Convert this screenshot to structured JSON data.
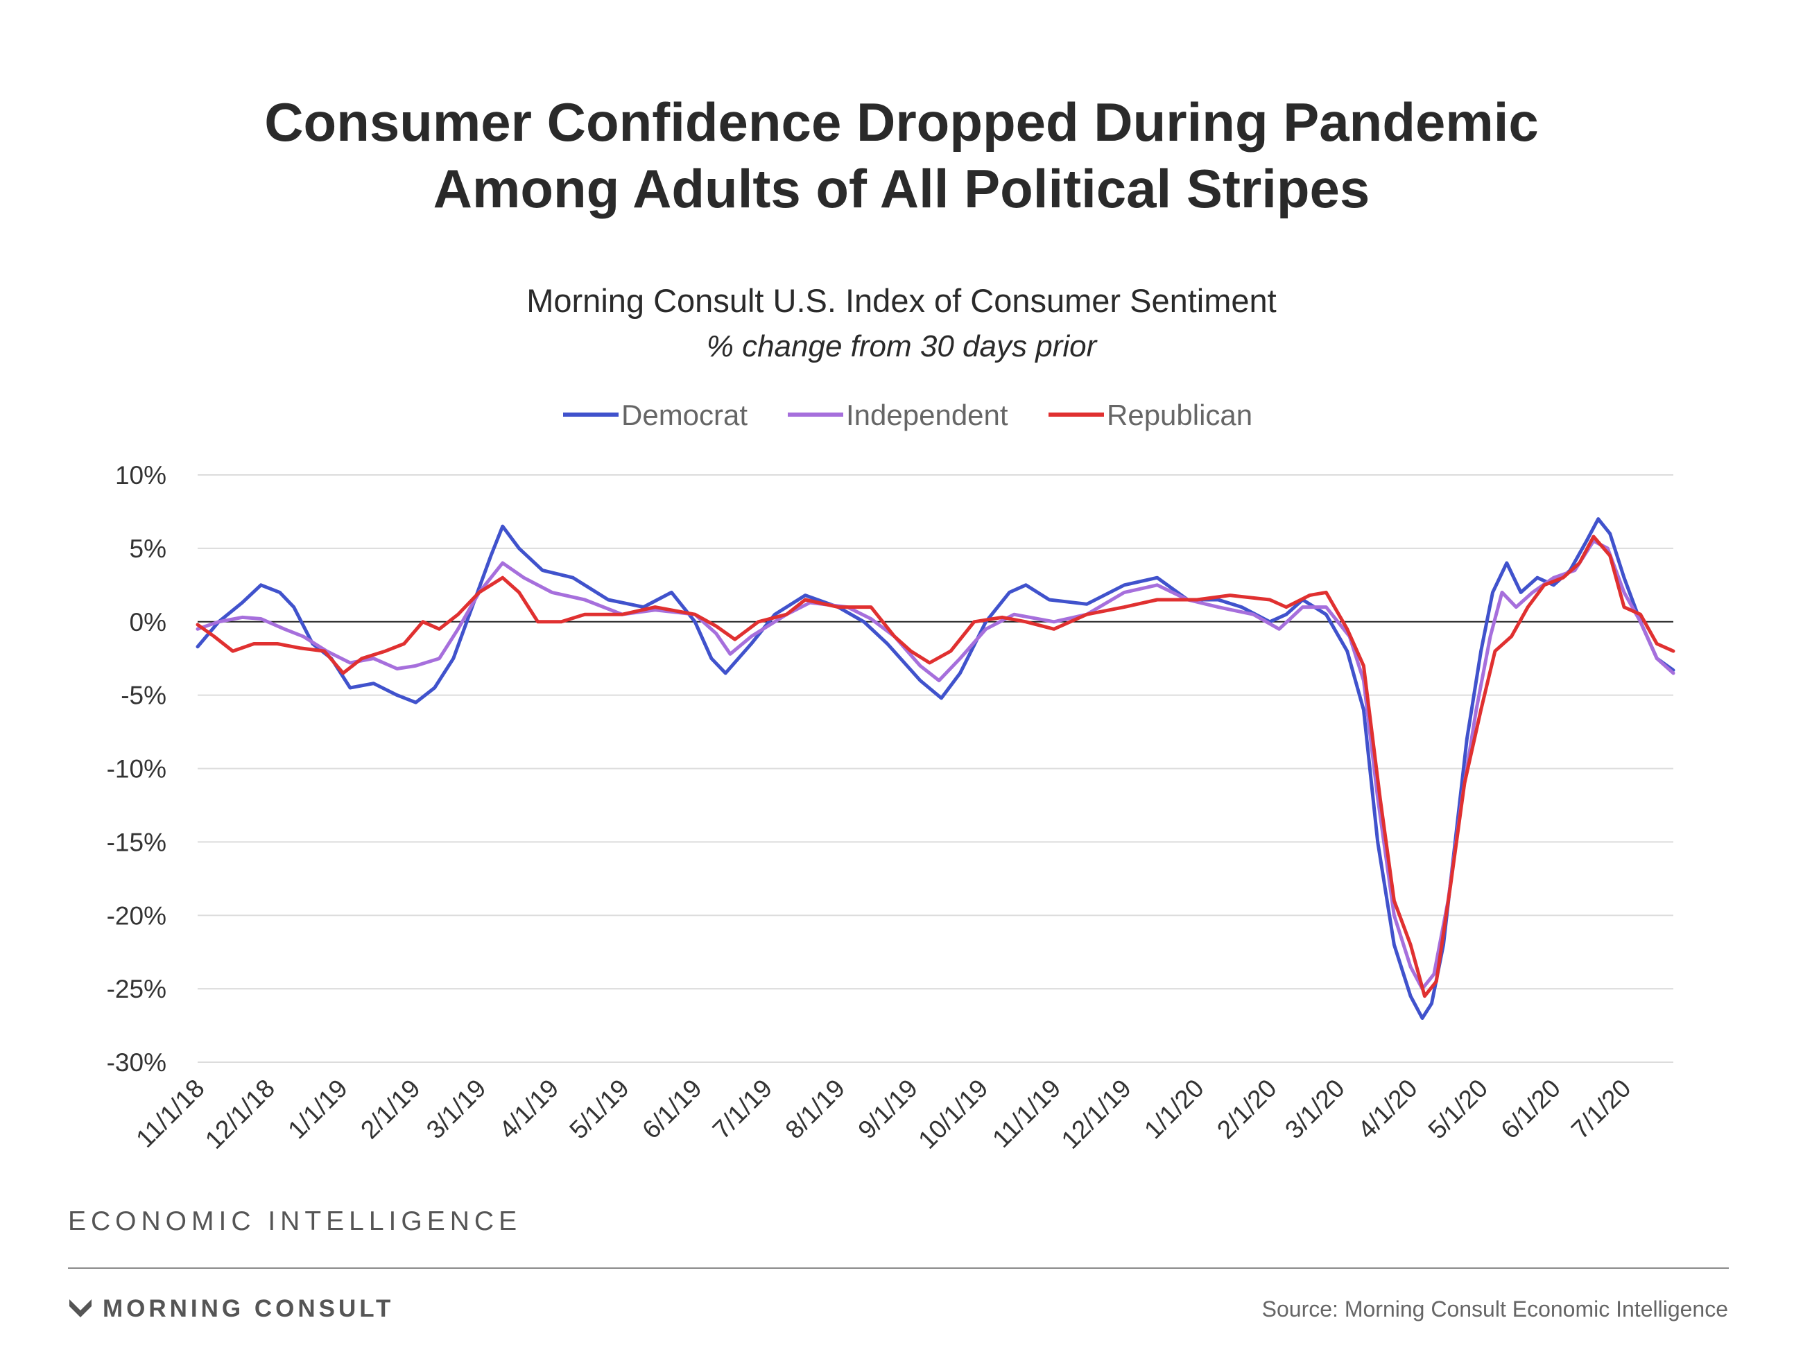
{
  "title_line1": "Consumer Confidence Dropped During Pandemic",
  "title_line2": "Among Adults of All Political Stripes",
  "subtitle": "Morning Consult U.S. Index of Consumer Sentiment",
  "subtitle2": "% change from 30 days prior",
  "brand": "ECONOMIC INTELLIGENCE",
  "logo_text": "MORNING CONSULT",
  "source": "Source: Morning Consult Economic Intelligence",
  "chart_data": {
    "type": "line",
    "x_type": "date",
    "xlim": [
      "2018-11-01",
      "2020-07-22"
    ],
    "x_ticks": [
      "2018-11-01",
      "2018-12-01",
      "2019-01-01",
      "2019-02-01",
      "2019-03-01",
      "2019-04-01",
      "2019-05-01",
      "2019-06-01",
      "2019-07-01",
      "2019-08-01",
      "2019-09-01",
      "2019-10-01",
      "2019-11-01",
      "2019-12-01",
      "2020-01-01",
      "2020-02-01",
      "2020-03-01",
      "2020-04-01",
      "2020-05-01",
      "2020-06-01",
      "2020-07-01"
    ],
    "x_tick_labels": [
      "11/1/18",
      "12/1/18",
      "1/1/19",
      "2/1/19",
      "3/1/19",
      "4/1/19",
      "5/1/19",
      "6/1/19",
      "7/1/19",
      "8/1/19",
      "9/1/19",
      "10/1/19",
      "11/1/19",
      "12/1/19",
      "1/1/20",
      "2/1/20",
      "3/1/20",
      "4/1/20",
      "5/1/20",
      "6/1/20",
      "7/1/20"
    ],
    "ylim": [
      -30,
      10
    ],
    "y_ticks": [
      10,
      5,
      0,
      -5,
      -10,
      -15,
      -20,
      -25,
      -30
    ],
    "y_tick_labels": [
      "10%",
      "5%",
      "0%",
      "-5%",
      "-10%",
      "-15%",
      "-20%",
      "-25%",
      "-30%"
    ],
    "grid": true,
    "legend_position": "top-center",
    "series": [
      {
        "name": "Democrat",
        "color": "#4052cc",
        "points": [
          [
            "2018-11-01",
            -1.7
          ],
          [
            "2018-11-10",
            0.0
          ],
          [
            "2018-11-20",
            1.3
          ],
          [
            "2018-11-28",
            2.5
          ],
          [
            "2018-12-06",
            2.0
          ],
          [
            "2018-12-12",
            1.0
          ],
          [
            "2018-12-20",
            -1.5
          ],
          [
            "2018-12-28",
            -2.5
          ],
          [
            "2019-01-05",
            -4.5
          ],
          [
            "2019-01-15",
            -4.2
          ],
          [
            "2019-01-25",
            -5.0
          ],
          [
            "2019-02-02",
            -5.5
          ],
          [
            "2019-02-10",
            -4.5
          ],
          [
            "2019-02-18",
            -2.5
          ],
          [
            "2019-02-26",
            1.0
          ],
          [
            "2019-03-06",
            4.5
          ],
          [
            "2019-03-11",
            6.5
          ],
          [
            "2019-03-18",
            5.0
          ],
          [
            "2019-03-28",
            3.5
          ],
          [
            "2019-04-10",
            3.0
          ],
          [
            "2019-04-25",
            1.5
          ],
          [
            "2019-05-10",
            1.0
          ],
          [
            "2019-05-22",
            2.0
          ],
          [
            "2019-06-01",
            0.0
          ],
          [
            "2019-06-08",
            -2.5
          ],
          [
            "2019-06-14",
            -3.5
          ],
          [
            "2019-06-25",
            -1.5
          ],
          [
            "2019-07-05",
            0.5
          ],
          [
            "2019-07-18",
            1.8
          ],
          [
            "2019-08-01",
            1.0
          ],
          [
            "2019-08-12",
            0.0
          ],
          [
            "2019-08-22",
            -1.5
          ],
          [
            "2019-09-05",
            -4.0
          ],
          [
            "2019-09-14",
            -5.2
          ],
          [
            "2019-09-22",
            -3.5
          ],
          [
            "2019-10-03",
            0.0
          ],
          [
            "2019-10-13",
            2.0
          ],
          [
            "2019-10-20",
            2.5
          ],
          [
            "2019-10-30",
            1.5
          ],
          [
            "2019-11-15",
            1.2
          ],
          [
            "2019-12-01",
            2.5
          ],
          [
            "2019-12-15",
            3.0
          ],
          [
            "2019-12-28",
            1.5
          ],
          [
            "2020-01-10",
            1.5
          ],
          [
            "2020-01-20",
            1.0
          ],
          [
            "2020-02-01",
            0.0
          ],
          [
            "2020-02-08",
            0.5
          ],
          [
            "2020-02-15",
            1.5
          ],
          [
            "2020-02-25",
            0.5
          ],
          [
            "2020-03-05",
            -2.0
          ],
          [
            "2020-03-12",
            -6.0
          ],
          [
            "2020-03-18",
            -15.0
          ],
          [
            "2020-03-25",
            -22.0
          ],
          [
            "2020-04-01",
            -25.5
          ],
          [
            "2020-04-06",
            -27.0
          ],
          [
            "2020-04-10",
            -26.0
          ],
          [
            "2020-04-15",
            -22.0
          ],
          [
            "2020-04-20",
            -15.0
          ],
          [
            "2020-04-25",
            -8.0
          ],
          [
            "2020-05-01",
            -2.0
          ],
          [
            "2020-05-06",
            2.0
          ],
          [
            "2020-05-12",
            4.0
          ],
          [
            "2020-05-18",
            2.0
          ],
          [
            "2020-05-25",
            3.0
          ],
          [
            "2020-06-01",
            2.5
          ],
          [
            "2020-06-08",
            3.5
          ],
          [
            "2020-06-15",
            5.5
          ],
          [
            "2020-06-20",
            7.0
          ],
          [
            "2020-06-25",
            6.0
          ],
          [
            "2020-07-01",
            3.0
          ],
          [
            "2020-07-08",
            0.0
          ],
          [
            "2020-07-15",
            -2.5
          ],
          [
            "2020-07-22",
            -3.3
          ]
        ]
      },
      {
        "name": "Independent",
        "color": "#a66fdc",
        "points": [
          [
            "2018-11-01",
            -0.5
          ],
          [
            "2018-11-10",
            0.0
          ],
          [
            "2018-11-20",
            0.3
          ],
          [
            "2018-11-28",
            0.2
          ],
          [
            "2018-12-08",
            -0.5
          ],
          [
            "2018-12-16",
            -1.0
          ],
          [
            "2018-12-26",
            -2.0
          ],
          [
            "2019-01-05",
            -2.8
          ],
          [
            "2019-01-15",
            -2.5
          ],
          [
            "2019-01-25",
            -3.2
          ],
          [
            "2019-02-02",
            -3.0
          ],
          [
            "2019-02-12",
            -2.5
          ],
          [
            "2019-02-20",
            -0.5
          ],
          [
            "2019-03-01",
            2.0
          ],
          [
            "2019-03-11",
            4.0
          ],
          [
            "2019-03-20",
            3.0
          ],
          [
            "2019-04-01",
            2.0
          ],
          [
            "2019-04-15",
            1.5
          ],
          [
            "2019-05-01",
            0.5
          ],
          [
            "2019-05-15",
            0.8
          ],
          [
            "2019-06-01",
            0.5
          ],
          [
            "2019-06-10",
            -0.8
          ],
          [
            "2019-06-16",
            -2.2
          ],
          [
            "2019-06-25",
            -1.0
          ],
          [
            "2019-07-10",
            0.5
          ],
          [
            "2019-07-20",
            1.3
          ],
          [
            "2019-08-05",
            1.0
          ],
          [
            "2019-08-15",
            0.2
          ],
          [
            "2019-08-25",
            -1.0
          ],
          [
            "2019-09-05",
            -3.0
          ],
          [
            "2019-09-13",
            -4.0
          ],
          [
            "2019-09-22",
            -2.5
          ],
          [
            "2019-10-03",
            -0.5
          ],
          [
            "2019-10-15",
            0.5
          ],
          [
            "2019-11-01",
            0.0
          ],
          [
            "2019-11-15",
            0.5
          ],
          [
            "2019-12-01",
            2.0
          ],
          [
            "2019-12-15",
            2.5
          ],
          [
            "2019-12-28",
            1.5
          ],
          [
            "2020-01-10",
            1.0
          ],
          [
            "2020-01-25",
            0.5
          ],
          [
            "2020-02-05",
            -0.5
          ],
          [
            "2020-02-15",
            1.0
          ],
          [
            "2020-02-25",
            1.0
          ],
          [
            "2020-03-06",
            -1.0
          ],
          [
            "2020-03-12",
            -4.0
          ],
          [
            "2020-03-18",
            -12.0
          ],
          [
            "2020-03-25",
            -20.0
          ],
          [
            "2020-04-01",
            -23.5
          ],
          [
            "2020-04-06",
            -25.0
          ],
          [
            "2020-04-11",
            -24.0
          ],
          [
            "2020-04-17",
            -19.0
          ],
          [
            "2020-04-23",
            -12.0
          ],
          [
            "2020-04-29",
            -6.0
          ],
          [
            "2020-05-05",
            -1.0
          ],
          [
            "2020-05-10",
            2.0
          ],
          [
            "2020-05-16",
            1.0
          ],
          [
            "2020-05-23",
            2.0
          ],
          [
            "2020-06-01",
            3.0
          ],
          [
            "2020-06-10",
            3.5
          ],
          [
            "2020-06-18",
            5.5
          ],
          [
            "2020-06-24",
            5.0
          ],
          [
            "2020-07-01",
            2.0
          ],
          [
            "2020-07-08",
            0.0
          ],
          [
            "2020-07-15",
            -2.5
          ],
          [
            "2020-07-22",
            -3.5
          ]
        ]
      },
      {
        "name": "Republican",
        "color": "#e03030",
        "points": [
          [
            "2018-11-01",
            -0.2
          ],
          [
            "2018-11-08",
            -1.0
          ],
          [
            "2018-11-16",
            -2.0
          ],
          [
            "2018-11-25",
            -1.5
          ],
          [
            "2018-12-05",
            -1.5
          ],
          [
            "2018-12-15",
            -1.8
          ],
          [
            "2018-12-25",
            -2.0
          ],
          [
            "2019-01-02",
            -3.5
          ],
          [
            "2019-01-10",
            -2.5
          ],
          [
            "2019-01-20",
            -2.0
          ],
          [
            "2019-01-28",
            -1.5
          ],
          [
            "2019-02-05",
            0.0
          ],
          [
            "2019-02-12",
            -0.5
          ],
          [
            "2019-02-20",
            0.5
          ],
          [
            "2019-03-01",
            2.0
          ],
          [
            "2019-03-11",
            3.0
          ],
          [
            "2019-03-18",
            2.0
          ],
          [
            "2019-03-26",
            0.0
          ],
          [
            "2019-04-05",
            0.0
          ],
          [
            "2019-04-15",
            0.5
          ],
          [
            "2019-05-01",
            0.5
          ],
          [
            "2019-05-15",
            1.0
          ],
          [
            "2019-06-01",
            0.5
          ],
          [
            "2019-06-10",
            -0.3
          ],
          [
            "2019-06-18",
            -1.2
          ],
          [
            "2019-06-28",
            0.0
          ],
          [
            "2019-07-10",
            0.5
          ],
          [
            "2019-07-18",
            1.5
          ],
          [
            "2019-08-01",
            1.0
          ],
          [
            "2019-08-15",
            1.0
          ],
          [
            "2019-08-25",
            -1.0
          ],
          [
            "2019-09-01",
            -2.0
          ],
          [
            "2019-09-09",
            -2.8
          ],
          [
            "2019-09-18",
            -2.0
          ],
          [
            "2019-09-28",
            0.0
          ],
          [
            "2019-10-10",
            0.3
          ],
          [
            "2019-10-20",
            0.0
          ],
          [
            "2019-11-01",
            -0.5
          ],
          [
            "2019-11-15",
            0.5
          ],
          [
            "2019-12-01",
            1.0
          ],
          [
            "2019-12-15",
            1.5
          ],
          [
            "2020-01-01",
            1.5
          ],
          [
            "2020-01-15",
            1.8
          ],
          [
            "2020-02-01",
            1.5
          ],
          [
            "2020-02-08",
            1.0
          ],
          [
            "2020-02-18",
            1.8
          ],
          [
            "2020-02-25",
            2.0
          ],
          [
            "2020-03-05",
            -0.5
          ],
          [
            "2020-03-12",
            -3.0
          ],
          [
            "2020-03-19",
            -12.0
          ],
          [
            "2020-03-25",
            -19.0
          ],
          [
            "2020-04-01",
            -22.0
          ],
          [
            "2020-04-07",
            -25.5
          ],
          [
            "2020-04-12",
            -24.5
          ],
          [
            "2020-04-18",
            -18.0
          ],
          [
            "2020-04-24",
            -11.0
          ],
          [
            "2020-05-01",
            -6.0
          ],
          [
            "2020-05-07",
            -2.0
          ],
          [
            "2020-05-14",
            -1.0
          ],
          [
            "2020-05-21",
            1.0
          ],
          [
            "2020-05-28",
            2.5
          ],
          [
            "2020-06-05",
            3.0
          ],
          [
            "2020-06-12",
            4.0
          ],
          [
            "2020-06-18",
            5.8
          ],
          [
            "2020-06-25",
            4.5
          ],
          [
            "2020-07-01",
            1.0
          ],
          [
            "2020-07-08",
            0.5
          ],
          [
            "2020-07-15",
            -1.5
          ],
          [
            "2020-07-22",
            -2.0
          ]
        ]
      }
    ]
  }
}
